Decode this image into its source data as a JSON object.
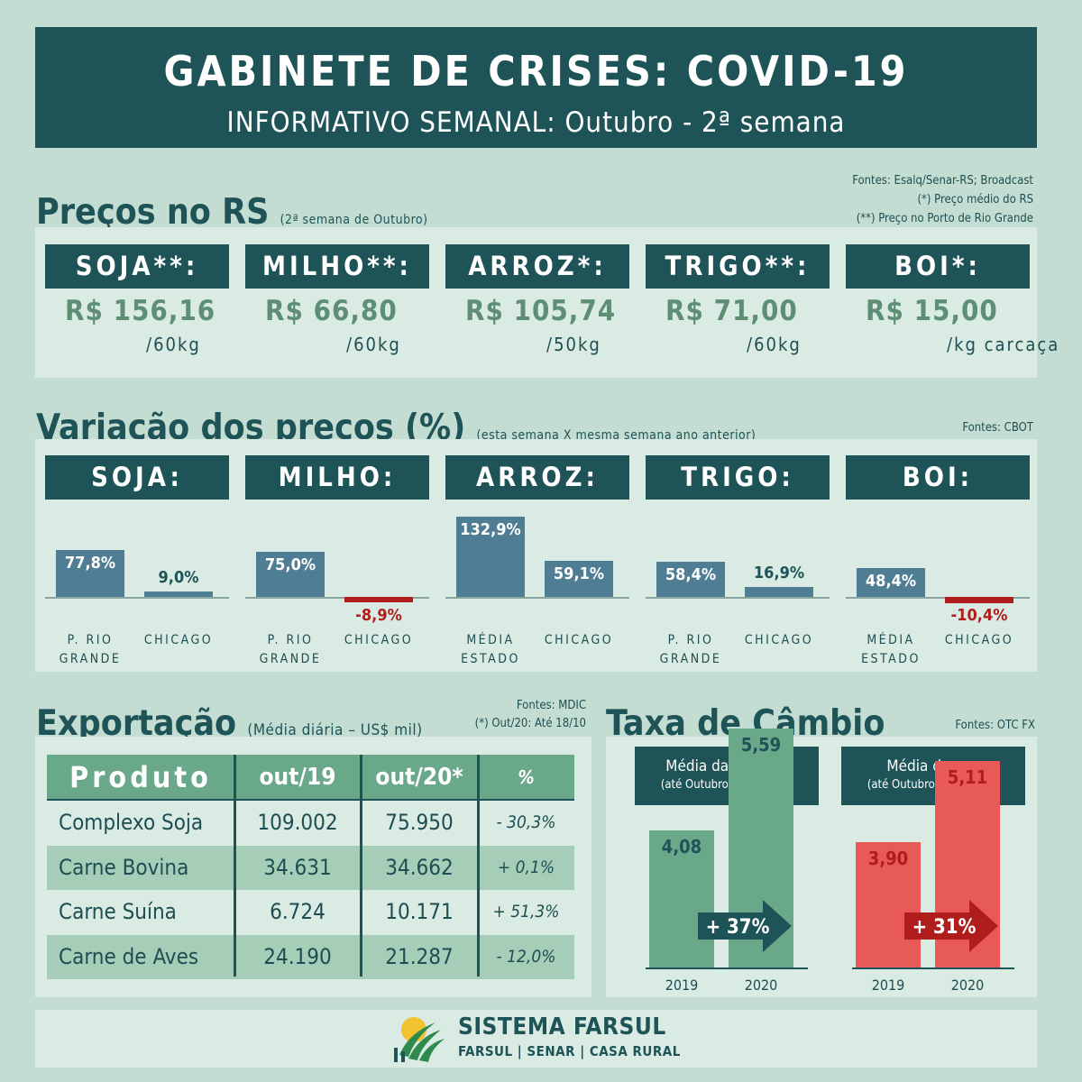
{
  "header": {
    "title": "GABINETE DE CRISES: COVID-19",
    "subtitle": "INFORMATIVO SEMANAL: Outubro - 2ª semana"
  },
  "precos": {
    "title": "Preços no RS",
    "subtitle": "(2ª semana de Outubro)",
    "sources": [
      "Fontes: Esalq/Senar-RS; Broadcast",
      "(*) Preço médio do RS",
      "(**) Preço no Porto de Rio Grande"
    ],
    "items": [
      {
        "label": "SOJA**:",
        "price": "R$ 156,16",
        "unit": "/60kg"
      },
      {
        "label": "MILHO**:",
        "price": "R$ 66,80",
        "unit": "/60kg"
      },
      {
        "label": "ARROZ*:",
        "price": "R$ 105,74",
        "unit": "/50kg"
      },
      {
        "label": "TRIGO**:",
        "price": "R$ 71,00",
        "unit": "/60kg"
      },
      {
        "label": "BOI*:",
        "price": "R$ 15,00",
        "unit": "/kg carcaça"
      }
    ]
  },
  "variacao": {
    "title": "Variação dos preços (%)",
    "subtitle": "(esta semana X mesma semana ano anterior)",
    "source": "Fontes: CBOT"
  },
  "chart_data": {
    "type": "bar",
    "title": "Variação dos preços (%)",
    "groups": [
      {
        "product": "SOJA:",
        "bars": [
          {
            "label": "P. RIO GRANDE",
            "value": 77.8,
            "text": "77,8%"
          },
          {
            "label": "CHICAGO",
            "value": 9.0,
            "text": "9,0%"
          }
        ]
      },
      {
        "product": "MILHO:",
        "bars": [
          {
            "label": "P. RIO GRANDE",
            "value": 75.0,
            "text": "75,0%"
          },
          {
            "label": "CHICAGO",
            "value": -8.9,
            "text": "-8,9%"
          }
        ]
      },
      {
        "product": "ARROZ:",
        "bars": [
          {
            "label": "MÉDIA ESTADO",
            "value": 132.9,
            "text": "132,9%"
          },
          {
            "label": "CHICAGO",
            "value": 59.1,
            "text": "59,1%"
          }
        ]
      },
      {
        "product": "TRIGO:",
        "bars": [
          {
            "label": "P. RIO GRANDE",
            "value": 58.4,
            "text": "58,4%"
          },
          {
            "label": "CHICAGO",
            "value": 16.9,
            "text": "16,9%"
          }
        ]
      },
      {
        "product": "BOI:",
        "bars": [
          {
            "label": "MÉDIA ESTADO",
            "value": 48.4,
            "text": "48,4%"
          },
          {
            "label": "CHICAGO",
            "value": -10.4,
            "text": "-10,4%"
          }
        ]
      }
    ],
    "ylim": [
      -20,
      140
    ]
  },
  "exportacao": {
    "title": "Exportação",
    "subtitle": "(Média diária – US$ mil)",
    "sources": [
      "Fontes: MDIC",
      "(*) Out/20: Até 18/10"
    ],
    "headers": [
      "Produto",
      "out/19",
      "out/20*",
      "%"
    ],
    "rows": [
      [
        "Complexo Soja",
        "109.002",
        "75.950",
        "- 30,3%"
      ],
      [
        "Carne Bovina",
        "34.631",
        "34.662",
        "+ 0,1%"
      ],
      [
        "Carne Suína",
        "6.724",
        "10.171",
        "+ 51,3%"
      ],
      [
        "Carne de Aves",
        "24.190",
        "21.287",
        "- 12,0%"
      ]
    ]
  },
  "cambio": {
    "title": "Taxa de Câmbio",
    "source": "Fontes: OTC FX",
    "charts": [
      {
        "title": "Média da semana",
        "note": "(até Outubro  2ª semana)",
        "years": [
          "2019",
          "2020"
        ],
        "values": [
          4.08,
          5.59
        ],
        "texts": [
          "4,08",
          "5,59"
        ],
        "change": "+ 37%",
        "color": "#6aa88a",
        "arrow_color": "#1e5357"
      },
      {
        "title": "Média do ano",
        "note": "(até Outubro  2ª semana)",
        "years": [
          "2019",
          "2020"
        ],
        "values": [
          3.9,
          5.11
        ],
        "texts": [
          "3,90",
          "5,11"
        ],
        "change": "+ 31%",
        "color": "#e85a58",
        "arrow_color": "#b01d1d"
      }
    ]
  },
  "footer": {
    "brand": "SISTEMA FARSUL",
    "orgs": "FARSUL | SENAR | CASA RURAL"
  }
}
